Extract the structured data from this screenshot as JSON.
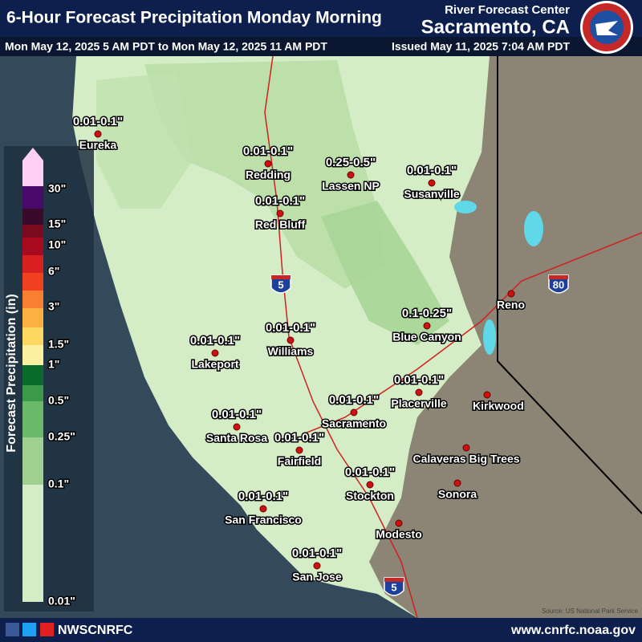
{
  "header": {
    "title": "6-Hour Forecast Precipitation Monday Morning",
    "center": "River Forecast Center",
    "office": "Sacramento, CA",
    "period": "Mon May 12, 2025 5 AM PDT to Mon May 12, 2025 11 AM PDT",
    "issued": "Issued May 11, 2025 7:04 AM PDT"
  },
  "legend": {
    "title": "Forecast Precipitation (in)",
    "labels": [
      "30\"",
      "15\"",
      "10\"",
      "6\"",
      "3\"",
      "1.5\"",
      "1\"",
      "0.5\"",
      "0.25\"",
      "0.1\"",
      "0.01\""
    ]
  },
  "cities": [
    {
      "name": "Eureka",
      "amount": "0.01-0.1\""
    },
    {
      "name": "Redding",
      "amount": "0.01-0.1\""
    },
    {
      "name": "Lassen NP",
      "amount": "0.25-0.5\""
    },
    {
      "name": "Susanville",
      "amount": "0.01-0.1\""
    },
    {
      "name": "Red Bluff",
      "amount": "0.01-0.1\""
    },
    {
      "name": "Reno"
    },
    {
      "name": "Blue Canyon",
      "amount": "0.1-0.25\""
    },
    {
      "name": "Williams",
      "amount": "0.01-0.1\""
    },
    {
      "name": "Lakeport",
      "amount": "0.01-0.1\""
    },
    {
      "name": "Placerville",
      "amount": "0.01-0.1\""
    },
    {
      "name": "Kirkwood"
    },
    {
      "name": "Sacramento",
      "amount": "0.01-0.1\""
    },
    {
      "name": "Santa Rosa",
      "amount": "0.01-0.1\""
    },
    {
      "name": "Fairfield",
      "amount": "0.01-0.1\""
    },
    {
      "name": "Calaveras Big Trees"
    },
    {
      "name": "Stockton",
      "amount": "0.01-0.1\""
    },
    {
      "name": "Sonora"
    },
    {
      "name": "San Francisco",
      "amount": "0.01-0.1\""
    },
    {
      "name": "Modesto"
    },
    {
      "name": "San Jose",
      "amount": "0.01-0.1\""
    }
  ],
  "highways": [
    "5",
    "80",
    "5"
  ],
  "source": "Source: US National Park Service",
  "footer": {
    "social": "NWSCNRFC",
    "url": "www.cnrfc.noaa.gov"
  }
}
